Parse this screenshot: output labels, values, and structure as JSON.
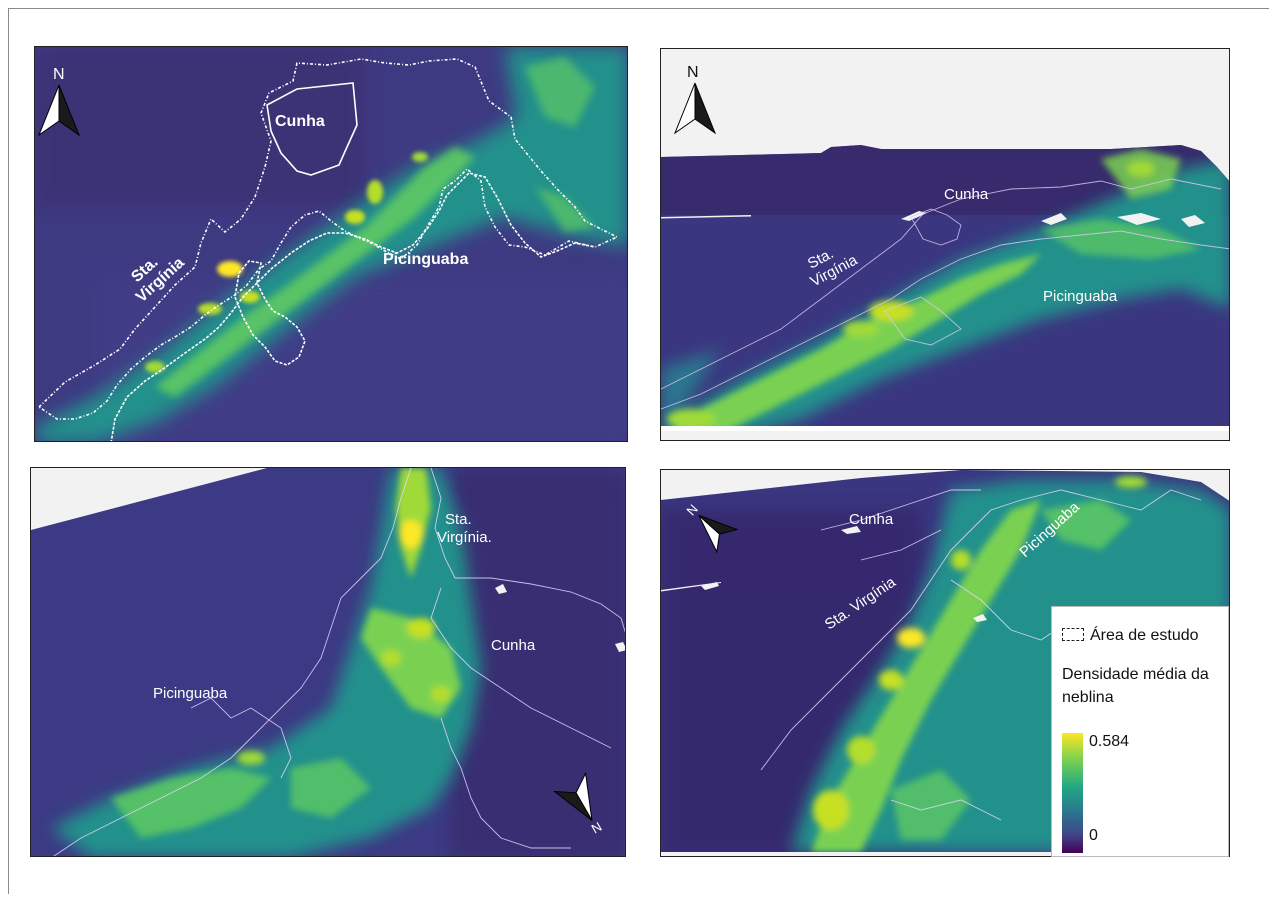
{
  "panels": [
    {
      "id": "panel-top-left",
      "view": "2D plan view",
      "north_label": "N",
      "labels": {
        "cunha": "Cunha",
        "sta_virginia_1": "Sta.",
        "sta_virginia_2": "Virgínia",
        "picinguaba": "Picinguaba"
      }
    },
    {
      "id": "panel-top-right",
      "view": "3D perspective",
      "north_label": "N",
      "labels": {
        "cunha": "Cunha",
        "sta_virginia_1": "Sta.",
        "sta_virginia_2": "Virgínia",
        "picinguaba": "Picinguaba"
      }
    },
    {
      "id": "panel-bottom-left",
      "view": "3D perspective",
      "north_label": "N",
      "labels": {
        "cunha": "Cunha",
        "sta_virginia_1": "Sta.",
        "sta_virginia_2": "Virgínia.",
        "picinguaba": "Picinguaba"
      }
    },
    {
      "id": "panel-bottom-right",
      "view": "3D perspective",
      "north_label": "N",
      "labels": {
        "cunha": "Cunha",
        "sta_virginia": "Sta. Virgínia",
        "picinguaba": "Picinguaba"
      }
    }
  ],
  "legend": {
    "boundary_label": "Área de estudo",
    "title": "Densidade média da neblina",
    "max_value": "0.584",
    "min_value": "0"
  },
  "colors": {
    "low": "#440154",
    "mid_low": "#3b528b",
    "mid": "#21918c",
    "mid_high": "#5ec962",
    "high": "#fde725",
    "boundary": "#ffffff",
    "sky": "#f2f2f2"
  },
  "icons": {
    "north_arrow": "north-arrow-icon",
    "boundary_swatch": "dashed-boundary-icon"
  }
}
